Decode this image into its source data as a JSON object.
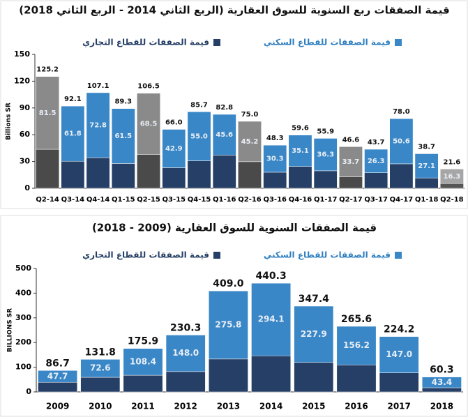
{
  "chart_data": [
    {
      "type": "stacked-bar",
      "title": "قيمة الصفقات ربع السنوية للسوق العقارية (الربع الثاني 2014 - الربع الثاني 2018)",
      "y_label": "Billions SR",
      "categories": [
        "Q2-14",
        "Q3-14",
        "Q4-14",
        "Q1-15",
        "Q2-15",
        "Q3-15",
        "Q4-15",
        "Q1-16",
        "Q2-16",
        "Q3-16",
        "Q4-16",
        "Q1-17",
        "Q2-17",
        "Q3-17",
        "Q4-17",
        "Q1-18",
        "Q2-18"
      ],
      "series": [
        {
          "name": "قيمة الصفقات للقطاع التجاري",
          "color": "#253f66",
          "colors": [
            "#4a4a4a",
            "#253f66",
            "#253f66",
            "#253f66",
            "#4a4a4a",
            "#253f66",
            "#253f66",
            "#253f66",
            "#4a4a4a",
            "#253f66",
            "#253f66",
            "#253f66",
            "#4a4a4a",
            "#253f66",
            "#253f66",
            "#253f66",
            "#555555"
          ],
          "values": [
            43.7,
            30.3,
            34.3,
            27.8,
            38.0,
            23.1,
            30.7,
            37.2,
            29.8,
            18.0,
            24.5,
            19.6,
            12.9,
            17.4,
            27.4,
            11.6,
            5.3
          ]
        },
        {
          "name": "قيمة الصفقات للقطاع السكني",
          "color": "#3a87c8",
          "colors": [
            "#8a8a8a",
            "#3a87c8",
            "#3a87c8",
            "#3a87c8",
            "#8a8a8a",
            "#3a87c8",
            "#3a87c8",
            "#3a87c8",
            "#8a8a8a",
            "#3a87c8",
            "#3a87c8",
            "#3a87c8",
            "#8a8a8a",
            "#3a87c8",
            "#3a87c8",
            "#3a87c8",
            "#a6a6a6"
          ],
          "values": [
            81.5,
            61.8,
            72.8,
            61.5,
            68.5,
            42.9,
            55.0,
            45.6,
            45.2,
            30.3,
            35.1,
            36.3,
            33.7,
            26.3,
            50.6,
            27.1,
            16.3
          ],
          "value_labels": [
            "81.5",
            "61.8",
            "72.8",
            "61.5",
            "68.5",
            "42.9",
            "55.0",
            "45.6",
            "45.2",
            "30.3",
            "35.1",
            "36.3",
            "33.7",
            "26.3",
            "50.6",
            "27.1",
            "16.3"
          ]
        }
      ],
      "total_labels": [
        "125.2",
        "92.1",
        "107.1",
        "89.3",
        "106.5",
        "66.0",
        "85.7",
        "82.8",
        "75.0",
        "48.3",
        "59.6",
        "55.9",
        "46.6",
        "43.7",
        "78.0",
        "38.7",
        "21.6"
      ],
      "ylim": [
        0,
        150
      ],
      "yticks": [
        0,
        30,
        60,
        90,
        120,
        150
      ]
    },
    {
      "type": "stacked-bar",
      "title": "قيمة الصفقات السنوية للسوق العقارية (2009 - 2018)",
      "y_label": "BILLIONS SR",
      "categories": [
        "2009",
        "2010",
        "2011",
        "2012",
        "2013",
        "2014",
        "2015",
        "2016",
        "2017",
        "2018"
      ],
      "series": [
        {
          "name": "قيمة الصفقات للقطاع التجاري",
          "color": "#253f66",
          "values": [
            39.0,
            59.2,
            67.5,
            82.3,
            133.2,
            146.2,
            119.5,
            109.4,
            77.2,
            16.9
          ]
        },
        {
          "name": "قيمة الصفقات للقطاع السكني",
          "color": "#3a87c8",
          "values": [
            47.7,
            72.6,
            108.4,
            148.0,
            275.8,
            294.1,
            227.9,
            156.2,
            147.0,
            43.4
          ],
          "value_labels": [
            "47.7",
            "72.6",
            "108.4",
            "148.0",
            "275.8",
            "294.1",
            "227.9",
            "156.2",
            "147.0",
            "43.4"
          ]
        }
      ],
      "total_labels": [
        "86.7",
        "131.8",
        "175.9",
        "230.3",
        "409.0",
        "440.3",
        "347.4",
        "265.6",
        "224.2",
        "60.3"
      ],
      "ylim": [
        0,
        500
      ],
      "yticks": [
        0,
        100,
        200,
        300,
        400,
        500
      ]
    }
  ]
}
